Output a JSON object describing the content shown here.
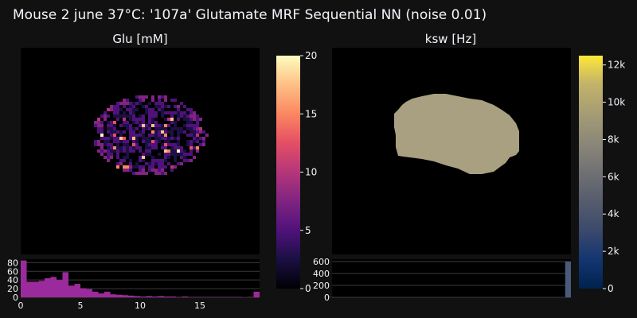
{
  "figure_title": "Mouse 2 june 37°C: '107a' Glutamate MRF Sequential NN (noise 0.01)",
  "chart_data": [
    {
      "type": "heatmap",
      "title": "Glu [mM]",
      "colorscale": "magma",
      "colorbar": {
        "range": [
          0,
          20
        ],
        "ticks": [
          0,
          5,
          10,
          15,
          20
        ],
        "tick_labels": [
          "0",
          "5",
          "10",
          "15",
          "20"
        ]
      },
      "description_values": "sparse brain-shaped region, mostly 2-6 mM with hot spots up to 20 mM",
      "histogram": {
        "type": "bar",
        "color": "#9b2a9c",
        "x_ticks": [
          0,
          5,
          10,
          15
        ],
        "x_tick_labels": [
          "0",
          "5",
          "10",
          "15"
        ],
        "y_ticks": [
          0,
          20,
          40,
          60,
          80
        ],
        "y_tick_labels": [
          "0",
          "20",
          "40",
          "60",
          "80"
        ],
        "xlim": [
          0,
          20
        ],
        "ylim": [
          0,
          88
        ],
        "bin_width": 0.5,
        "counts": [
          85,
          36,
          36,
          38,
          44,
          47,
          40,
          58,
          27,
          31,
          21,
          19,
          13,
          9,
          13,
          7,
          6,
          5,
          4,
          3,
          2,
          3,
          2,
          3,
          2,
          2,
          1,
          2,
          1,
          1,
          1,
          1,
          1,
          1,
          1,
          1,
          1,
          0,
          1,
          13
        ]
      }
    },
    {
      "type": "heatmap",
      "title": "ksw [Hz]",
      "colorscale": "cividis",
      "colorbar": {
        "range": [
          0,
          12500
        ],
        "ticks": [
          0,
          2000,
          4000,
          6000,
          8000,
          10000,
          12000
        ],
        "tick_labels": [
          "0",
          "2k",
          "4k",
          "6k",
          "8k",
          "10k",
          "12k"
        ]
      },
      "region_value": 7000,
      "background_value": 0,
      "histogram": {
        "type": "bar",
        "color": "#4a5a7a",
        "y_ticks": [
          0,
          200,
          400,
          600
        ],
        "y_tick_labels": [
          "0",
          "200",
          "400",
          "600"
        ],
        "ylim": [
          0,
          640
        ],
        "xlim": [
          0,
          12500
        ],
        "bars": [
          {
            "x": 12400,
            "count": 600
          },
          {
            "x": 0,
            "count": 5
          }
        ]
      }
    }
  ],
  "colors": {
    "background": "#111111",
    "plot_bg": "#000000",
    "ksw_region": "#a8a080",
    "glu_hist": "#9b2a9c",
    "grid": "#3a3a3a"
  }
}
